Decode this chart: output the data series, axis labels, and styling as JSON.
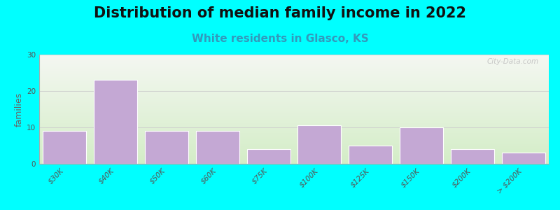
{
  "title": "Distribution of median family income in 2022",
  "subtitle": "White residents in Glasco, KS",
  "ylabel": "families",
  "categories": [
    "$30K",
    "$40K",
    "$50K",
    "$60K",
    "$75K",
    "$100K",
    "$125K",
    "$150K",
    "$200K",
    "> $200K"
  ],
  "values": [
    9,
    23,
    9,
    9,
    4,
    10.5,
    5,
    10,
    4,
    3
  ],
  "bar_color": "#c4a8d4",
  "bar_edge_color": "#ffffff",
  "background_color": "#00ffff",
  "plot_bg_top": "#f0f4ec",
  "plot_bg_bottom": "#d4ecc8",
  "ylim": [
    0,
    30
  ],
  "yticks": [
    0,
    10,
    20,
    30
  ],
  "grid_color": "#cccccc",
  "title_fontsize": 15,
  "subtitle_fontsize": 11,
  "subtitle_color": "#3399bb",
  "ylabel_fontsize": 9,
  "tick_fontsize": 7.5,
  "watermark": "City-Data.com"
}
